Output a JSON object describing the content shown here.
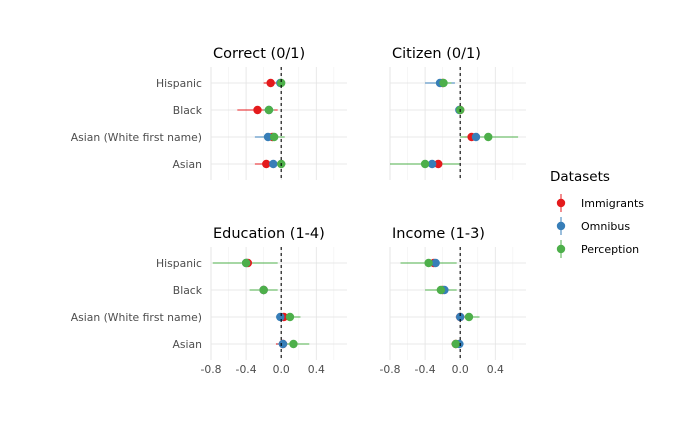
{
  "chart_data": {
    "type": "scatter",
    "categories": [
      "Hispanic",
      "Black",
      "Asian (White first name)",
      "Asian"
    ],
    "x_ticks": [
      -0.8,
      -0.4,
      0.0,
      0.4
    ],
    "x_tick_labels": [
      "-0.8",
      "-0.4",
      "0.0",
      "0.4"
    ],
    "xlim": [
      -0.8,
      0.75
    ],
    "reference_line": 0,
    "legend": {
      "title": "Datasets",
      "position": "right",
      "entries": [
        {
          "name": "Immigrants",
          "color": "#e41a1c"
        },
        {
          "name": "Omnibus",
          "color": "#377eb8"
        },
        {
          "name": "Perception",
          "color": "#4daf4a"
        }
      ]
    },
    "panels": [
      {
        "title": "Correct (0/1)",
        "data": {
          "Hispanic": [
            [
              -0.12,
              -0.2,
              -0.05
            ],
            [
              -0.01,
              -0.05,
              0.03
            ],
            [
              0.0,
              -0.04,
              0.04
            ]
          ],
          "Black": [
            [
              -0.27,
              -0.5,
              -0.04
            ],
            [
              -0.14,
              -0.2,
              -0.08
            ],
            [
              -0.14,
              -0.2,
              -0.08
            ]
          ],
          "Asian (White first name)": [
            [
              -0.1,
              -0.2,
              0.0
            ],
            [
              -0.15,
              -0.3,
              0.0
            ],
            [
              -0.08,
              -0.2,
              0.04
            ]
          ],
          "Asian": [
            [
              -0.17,
              -0.3,
              -0.04
            ],
            [
              -0.09,
              -0.18,
              0.0
            ],
            [
              0.0,
              -0.05,
              0.05
            ]
          ]
        }
      },
      {
        "title": "Citizen (0/1)",
        "data": {
          "Hispanic": [
            [
              -0.2,
              -0.3,
              -0.1
            ],
            [
              -0.23,
              -0.4,
              -0.06
            ],
            [
              -0.19,
              -0.28,
              -0.1
            ]
          ],
          "Black": [
            [
              0.0,
              -0.04,
              0.04
            ],
            [
              -0.01,
              -0.05,
              0.03
            ],
            [
              0.0,
              -0.04,
              0.04
            ]
          ],
          "Asian (White first name)": [
            [
              0.13,
              0.05,
              0.22
            ],
            [
              0.18,
              0.08,
              0.28
            ],
            [
              0.32,
              0.0,
              0.66
            ]
          ],
          "Asian": [
            [
              -0.25,
              -0.4,
              -0.1
            ],
            [
              -0.32,
              -0.5,
              -0.15
            ],
            [
              -0.4,
              -0.8,
              0.0
            ]
          ]
        }
      },
      {
        "title": "Education (1-4)",
        "data": {
          "Hispanic": [
            [
              -0.38,
              -0.5,
              -0.25
            ],
            [
              -0.4,
              -0.5,
              -0.3
            ],
            [
              -0.4,
              -0.78,
              -0.04
            ]
          ],
          "Black": [
            [
              -0.2,
              -0.3,
              -0.1
            ],
            [
              -0.2,
              -0.3,
              -0.1
            ],
            [
              -0.2,
              -0.36,
              -0.04
            ]
          ],
          "Asian (White first name)": [
            [
              0.03,
              -0.05,
              0.1
            ],
            [
              -0.01,
              -0.06,
              0.04
            ],
            [
              0.1,
              -0.03,
              0.22
            ]
          ],
          "Asian": [
            [
              0.02,
              -0.06,
              0.1
            ],
            [
              0.02,
              -0.04,
              0.08
            ],
            [
              0.14,
              0.0,
              0.32
            ]
          ]
        }
      },
      {
        "title": "Income (1-3)",
        "data": {
          "Hispanic": [
            [
              -0.3,
              -0.4,
              -0.2
            ],
            [
              -0.28,
              -0.4,
              -0.16
            ],
            [
              -0.36,
              -0.68,
              -0.04
            ]
          ],
          "Black": [
            [
              -0.2,
              -0.28,
              -0.12
            ],
            [
              -0.18,
              -0.3,
              -0.06
            ],
            [
              -0.22,
              -0.4,
              -0.04
            ]
          ],
          "Asian (White first name)": [
            [
              0.0,
              -0.05,
              0.05
            ],
            [
              0.0,
              -0.05,
              0.05
            ],
            [
              0.1,
              0.0,
              0.22
            ]
          ],
          "Asian": [
            [
              -0.05,
              -0.1,
              0.0
            ],
            [
              -0.01,
              -0.06,
              0.04
            ],
            [
              -0.05,
              -0.1,
              0.0
            ]
          ]
        }
      }
    ]
  }
}
